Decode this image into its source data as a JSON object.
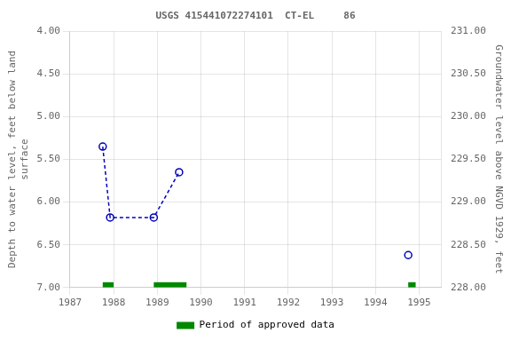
{
  "chart_data": {
    "type": "line",
    "title": "USGS 415441072274101  CT-EL     86",
    "ylabel": "Depth to water level, feet below land\nsurface",
    "y2label": "Groundwater level above NGVD 1929, feet",
    "xlim": [
      1987.0,
      1995.5
    ],
    "xticks": [
      1987,
      1988,
      1989,
      1990,
      1991,
      1992,
      1993,
      1994,
      1995
    ],
    "ylim": [
      7.0,
      4.0
    ],
    "yticks": [
      {
        "value": 4.0,
        "label": "4.00"
      },
      {
        "value": 4.5,
        "label": "4.50"
      },
      {
        "value": 5.0,
        "label": "5.00"
      },
      {
        "value": 5.5,
        "label": "5.50"
      },
      {
        "value": 6.0,
        "label": "6.00"
      },
      {
        "value": 6.5,
        "label": "6.50"
      },
      {
        "value": 7.0,
        "label": "7.00"
      }
    ],
    "y2lim": [
      228.0,
      231.0
    ],
    "y2ticks": [
      {
        "value": 228.0,
        "label": "228.00"
      },
      {
        "value": 228.5,
        "label": "228.50"
      },
      {
        "value": 229.0,
        "label": "229.00"
      },
      {
        "value": 229.5,
        "label": "229.50"
      },
      {
        "value": 230.0,
        "label": "230.00"
      },
      {
        "value": 230.5,
        "label": "230.50"
      },
      {
        "value": 231.0,
        "label": "231.00"
      }
    ],
    "grid": true,
    "legend": "bottom",
    "series": [
      {
        "x": [
          1987.75,
          1987.92,
          1988.92,
          1989.5
        ],
        "values": [
          5.35,
          6.18,
          6.18,
          5.65
        ],
        "color": "#0000bb",
        "marker": "circle",
        "line_style": "dashed"
      },
      {
        "x": [
          1994.75
        ],
        "values": [
          6.62
        ],
        "color": "#0000bb",
        "marker": "circle",
        "line_style": "none"
      }
    ],
    "approved_periods": {
      "name": "Period of approved data",
      "color": "#008800",
      "ranges": [
        [
          1987.75,
          1988.0
        ],
        [
          1988.92,
          1989.67
        ],
        [
          1994.75,
          1994.92
        ]
      ]
    }
  }
}
